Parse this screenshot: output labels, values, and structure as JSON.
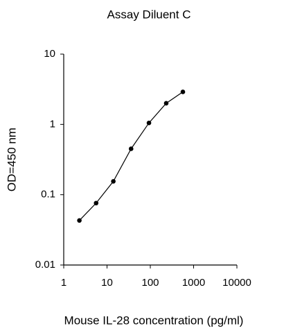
{
  "chart_data": {
    "type": "line",
    "title": "Assay Diluent C",
    "x_label": "Mouse IL-28 concentration (pg/ml)",
    "y_label": "OD=450 nm",
    "x": [
      2.3,
      5.6,
      14,
      36,
      93,
      233,
      565
    ],
    "series": [
      {
        "color": "#000000",
        "values": [
          0.043,
          0.076,
          0.155,
          0.45,
          1.05,
          2.0,
          2.9
        ]
      }
    ],
    "xscale": "log",
    "yscale": "log",
    "xlim": [
      1,
      10000
    ],
    "ylim": [
      0.01,
      10
    ],
    "xticks": [
      1,
      10,
      100,
      1000,
      10000
    ],
    "yticks": [
      0.01,
      0.1,
      1,
      10
    ],
    "markers": true
  }
}
